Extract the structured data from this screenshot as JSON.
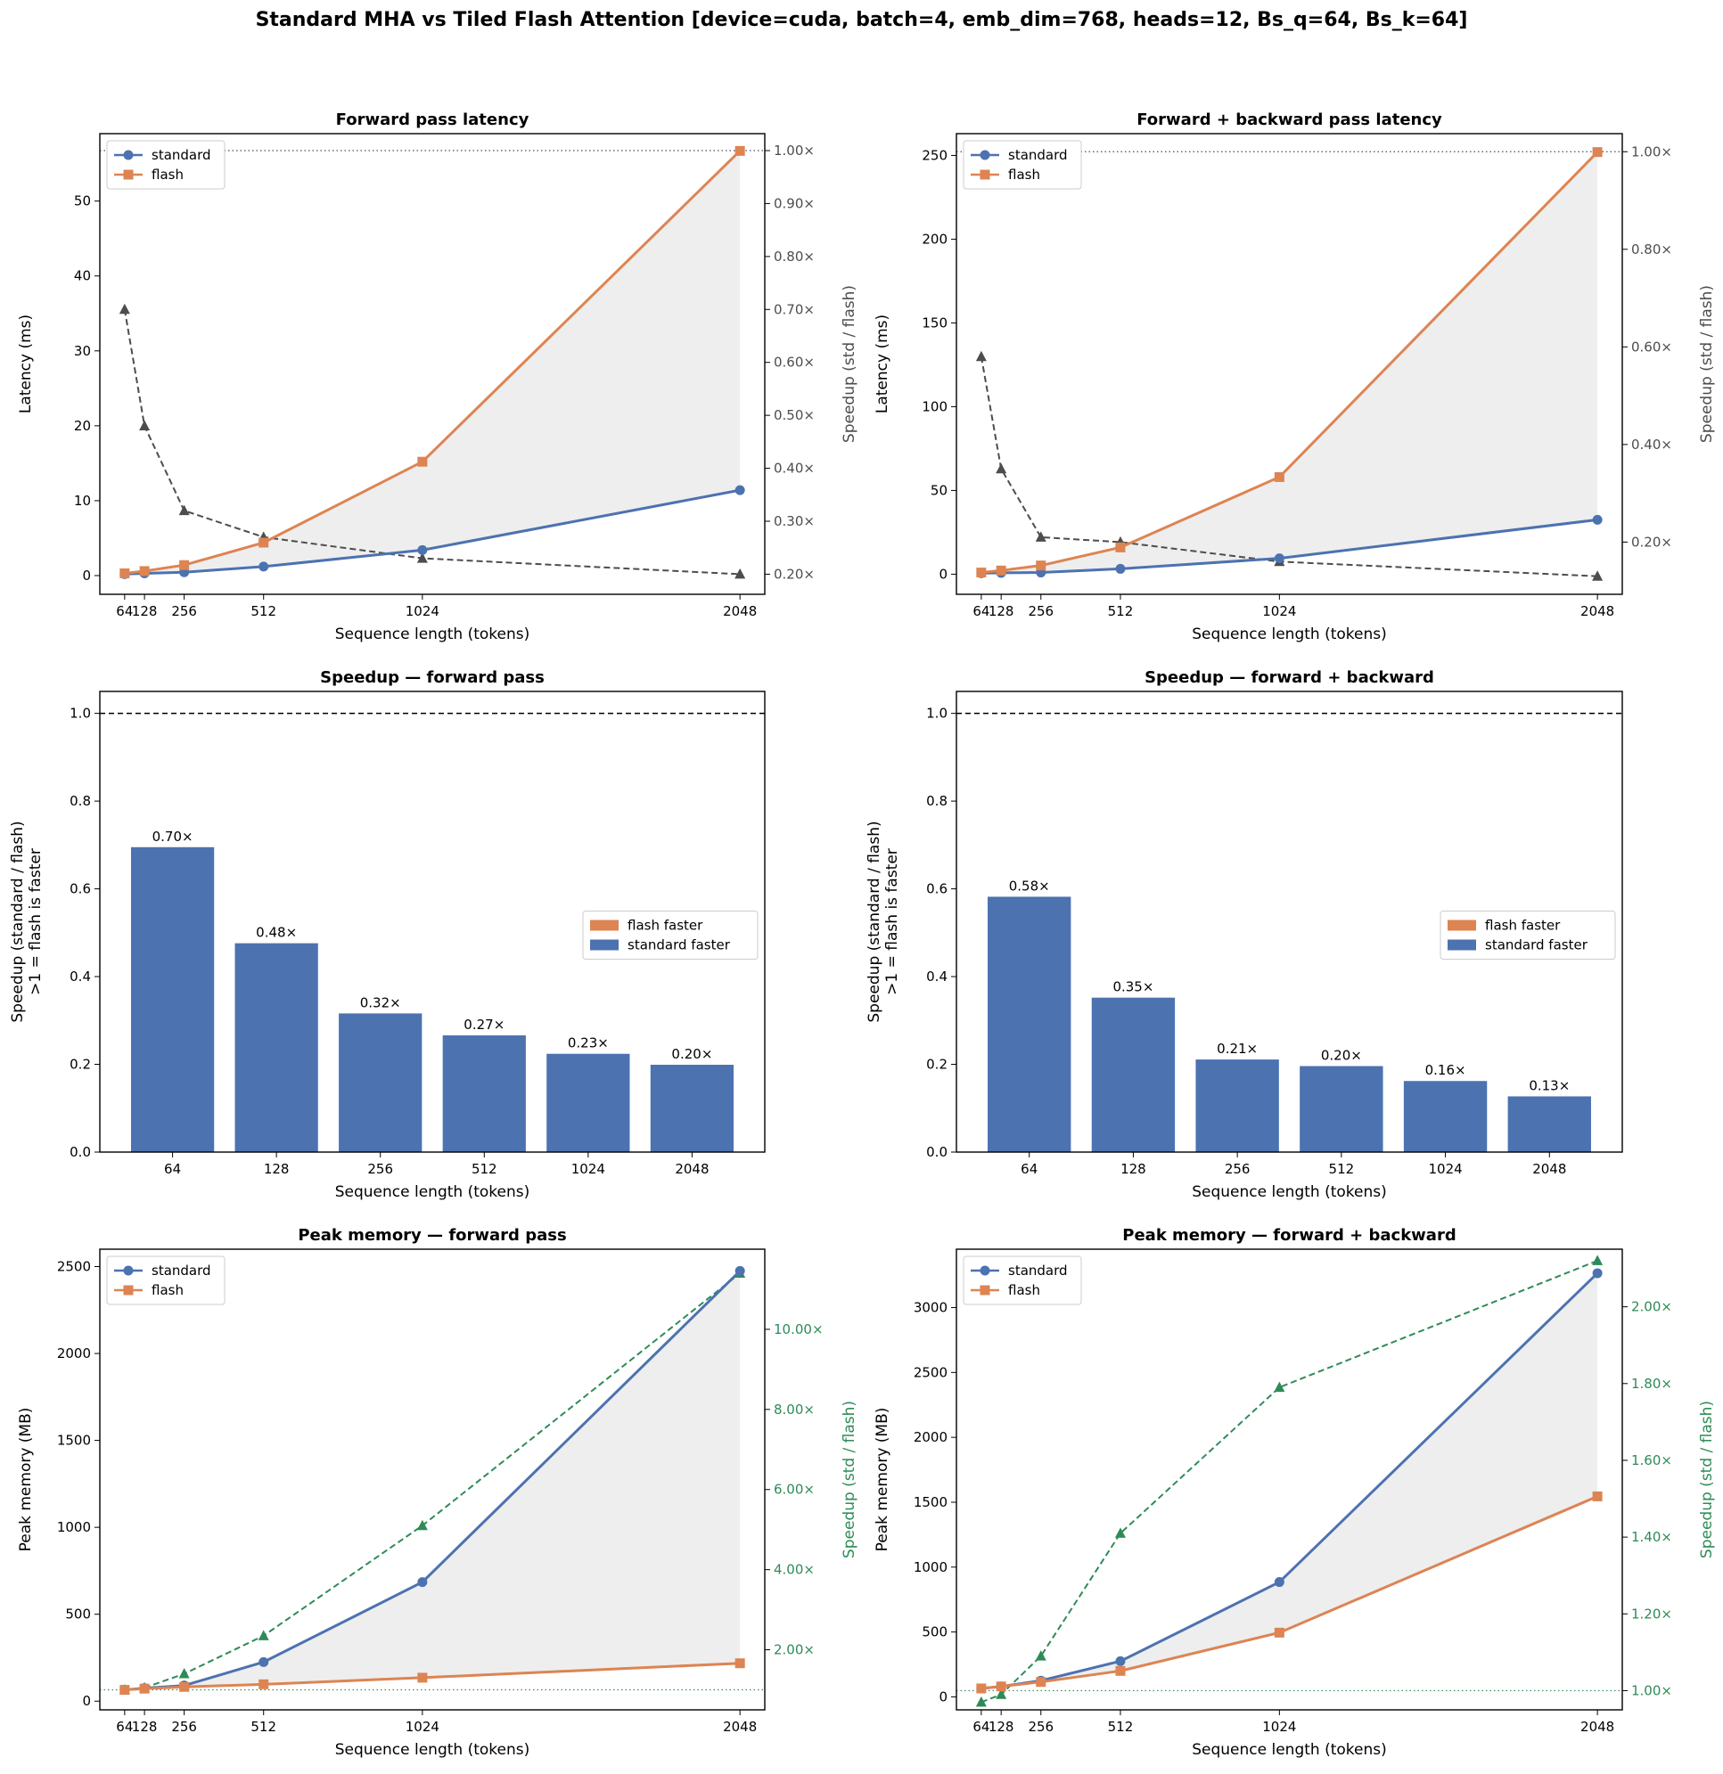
{
  "suptitle": "Standard MHA vs Tiled Flash Attention   [device=cuda, batch=4, emb_dim=768, heads=12, Bs_q=64, Bs_k=64]",
  "colors": {
    "standard": "#4c72b0",
    "flash": "#dd8452",
    "latency_speedup": "#4d4d4d",
    "memory_speedup": "#2e8b57",
    "fill": "#eeeeee"
  },
  "chart_data": [
    {
      "id": "fwd-latency",
      "type": "line",
      "title": "Forward pass latency",
      "xlabel": "Sequence length (tokens)",
      "ylabel": "Latency (ms)",
      "y2label": "Speedup (std / flash)",
      "x": [
        64,
        128,
        256,
        512,
        1024,
        2048
      ],
      "xlim": [
        -16,
        2128
      ],
      "ylim": [
        -2.5,
        59
      ],
      "yticks": [
        0,
        10,
        20,
        30,
        40,
        50
      ],
      "y2lim": [
        0.162,
        1.032
      ],
      "y2ticks": [
        0.2,
        0.3,
        0.4,
        0.5,
        0.6,
        0.7,
        0.8,
        0.9,
        1.0
      ],
      "y2ticklabels": [
        "0.20×",
        "0.30×",
        "0.40×",
        "0.50×",
        "0.60×",
        "0.70×",
        "0.80×",
        "0.90×",
        "1.00×"
      ],
      "y2color": "latency_speedup",
      "legend": [
        "standard",
        "flash"
      ],
      "series": [
        {
          "name": "standard",
          "values": [
            0.2,
            0.3,
            0.45,
            1.2,
            3.4,
            11.4
          ]
        },
        {
          "name": "flash",
          "values": [
            0.3,
            0.6,
            1.4,
            4.4,
            15.2,
            56.7
          ]
        }
      ],
      "speedup": [
        0.7,
        0.48,
        0.32,
        0.27,
        0.23,
        0.2
      ]
    },
    {
      "id": "fb-latency",
      "type": "line",
      "title": "Forward + backward pass latency",
      "xlabel": "Sequence length (tokens)",
      "ylabel": "Latency (ms)",
      "y2label": "Speedup (std / flash)",
      "x": [
        64,
        128,
        256,
        512,
        1024,
        2048
      ],
      "xlim": [
        -16,
        2128
      ],
      "ylim": [
        -12,
        263
      ],
      "yticks": [
        0,
        50,
        100,
        150,
        200,
        250
      ],
      "y2lim": [
        0.093,
        1.037
      ],
      "y2ticks": [
        0.2,
        0.4,
        0.6,
        0.8,
        1.0
      ],
      "y2ticklabels": [
        "0.20×",
        "0.40×",
        "0.60×",
        "0.80×",
        "1.00×"
      ],
      "y2color": "latency_speedup",
      "legend": [
        "standard",
        "flash"
      ],
      "series": [
        {
          "name": "standard",
          "values": [
            0.6,
            0.8,
            1.0,
            3.2,
            9.5,
            32.5
          ]
        },
        {
          "name": "flash",
          "values": [
            1.0,
            2.2,
            5.2,
            16.0,
            58.0,
            252.0
          ]
        }
      ],
      "speedup": [
        0.58,
        0.35,
        0.21,
        0.2,
        0.16,
        0.13
      ]
    },
    {
      "id": "fwd-speedup",
      "type": "bar",
      "title": "Speedup — forward pass",
      "xlabel": "Sequence length (tokens)",
      "ylabel": "Speedup (standard / flash)",
      "ylabel2": ">1 = flash is faster",
      "categories": [
        "64",
        "128",
        "256",
        "512",
        "1024",
        "2048"
      ],
      "values": [
        0.695,
        0.476,
        0.316,
        0.266,
        0.224,
        0.199
      ],
      "labels": [
        "0.70×",
        "0.48×",
        "0.32×",
        "0.27×",
        "0.23×",
        "0.20×"
      ],
      "ylim": [
        0,
        1.05
      ],
      "yticks": [
        0.0,
        0.2,
        0.4,
        0.6,
        0.8,
        1.0
      ],
      "reference_line": 1.0,
      "legend": [
        "flash faster",
        "standard faster"
      ]
    },
    {
      "id": "fb-speedup",
      "type": "bar",
      "title": "Speedup — forward + backward",
      "xlabel": "Sequence length (tokens)",
      "ylabel": "Speedup (standard / flash)",
      "ylabel2": ">1 = flash is faster",
      "categories": [
        "64",
        "128",
        "256",
        "512",
        "1024",
        "2048"
      ],
      "values": [
        0.582,
        0.352,
        0.211,
        0.196,
        0.162,
        0.127
      ],
      "labels": [
        "0.58×",
        "0.35×",
        "0.21×",
        "0.20×",
        "0.16×",
        "0.13×"
      ],
      "ylim": [
        0,
        1.05
      ],
      "yticks": [
        0.0,
        0.2,
        0.4,
        0.6,
        0.8,
        1.0
      ],
      "reference_line": 1.0,
      "legend": [
        "flash faster",
        "standard faster"
      ]
    },
    {
      "id": "fwd-memory",
      "type": "line",
      "title": "Peak memory — forward pass",
      "xlabel": "Sequence length (tokens)",
      "ylabel": "Peak memory (MB)",
      "y2label": "Speedup (std / flash)",
      "x": [
        64,
        128,
        256,
        512,
        1024,
        2048
      ],
      "xlim": [
        -16,
        2128
      ],
      "ylim": [
        -50,
        2600
      ],
      "yticks": [
        0,
        500,
        1000,
        1500,
        2000,
        2500
      ],
      "y2lim": [
        0.5,
        12.0
      ],
      "y2ticks": [
        2,
        4,
        6,
        8,
        10
      ],
      "y2ticklabels": [
        "2.00×",
        "4.00×",
        "6.00×",
        "8.00×",
        "10.00×"
      ],
      "y2color": "memory_speedup",
      "legend": [
        "standard",
        "flash"
      ],
      "series": [
        {
          "name": "standard",
          "values": [
            65,
            75,
            90,
            225,
            685,
            2475
          ]
        },
        {
          "name": "flash",
          "values": [
            65,
            72,
            82,
            97,
            135,
            218
          ]
        }
      ],
      "speedup": [
        1.0,
        1.05,
        1.4,
        2.35,
        5.1,
        11.4
      ]
    },
    {
      "id": "fb-memory",
      "type": "line",
      "title": "Peak memory — forward + backward",
      "xlabel": "Sequence length (tokens)",
      "ylabel": "Peak memory (MB)",
      "y2label": "Speedup (std / flash)",
      "x": [
        64,
        128,
        256,
        512,
        1024,
        2048
      ],
      "xlim": [
        -16,
        2128
      ],
      "ylim": [
        -100,
        3450
      ],
      "yticks": [
        0,
        500,
        1000,
        1500,
        2000,
        2500,
        3000
      ],
      "y2lim": [
        0.95,
        2.15
      ],
      "y2ticks": [
        1.0,
        1.2,
        1.4,
        1.6,
        1.8,
        2.0
      ],
      "y2ticklabels": [
        "1.00×",
        "1.20×",
        "1.40×",
        "1.60×",
        "1.80×",
        "2.00×"
      ],
      "y2color": "memory_speedup",
      "legend": [
        "standard",
        "flash"
      ],
      "series": [
        {
          "name": "standard",
          "values": [
            65,
            80,
            125,
            275,
            885,
            3265
          ]
        },
        {
          "name": "flash",
          "values": [
            65,
            80,
            115,
            200,
            495,
            1545
          ]
        }
      ],
      "speedup": [
        0.97,
        0.99,
        1.09,
        1.41,
        1.79,
        2.12
      ]
    }
  ]
}
